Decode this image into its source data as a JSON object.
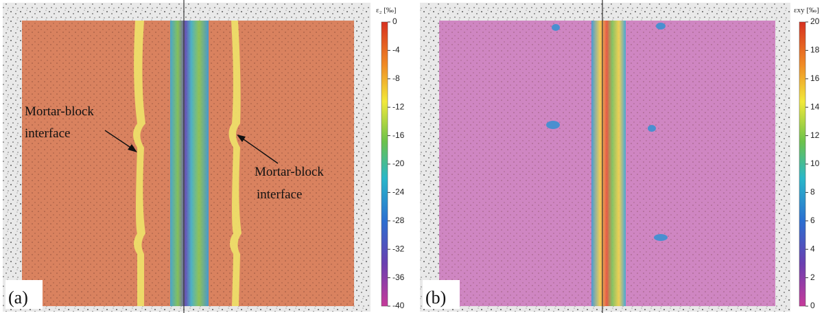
{
  "panels": [
    {
      "label": "(a)",
      "colorbar": {
        "title": "ε₂ [‰]",
        "ticks": [
          "0",
          "-4",
          "-8",
          "-12",
          "-16",
          "-20",
          "-24",
          "-28",
          "-32",
          "-36",
          "-40"
        ]
      },
      "annotations": [
        {
          "lines": [
            "Mortar-block",
            "interface"
          ]
        },
        {
          "lines": [
            "Mortar-block",
            "interface"
          ]
        }
      ]
    },
    {
      "label": "(b)",
      "colorbar": {
        "title": "εxy [‰]",
        "ticks": [
          "20",
          "18",
          "16",
          "14",
          "12",
          "10",
          "8",
          "6",
          "4",
          "2",
          "0"
        ]
      }
    }
  ]
}
